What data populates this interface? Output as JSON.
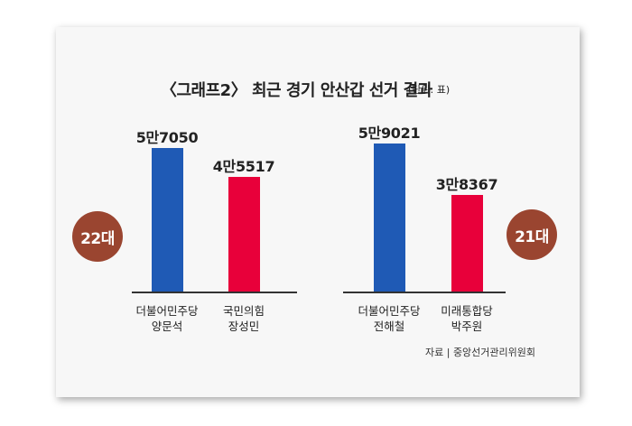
{
  "title": "〈그래프2〉 최근 경기 안산갑 선거 결과",
  "unit": "(단위: 표)",
  "source": "자료 | 중앙선거관리위원회",
  "chart_data": [
    {
      "type": "bar",
      "label": "22대",
      "unit": "표",
      "categories": [
        "더불어민주당 양문석",
        "국민의힘 장성민"
      ],
      "bars": [
        {
          "party": "더불어민주당",
          "candidate": "양문석",
          "value": 57050,
          "value_label": "5만7050",
          "color": "#1f5ab5"
        },
        {
          "party": "국민의힘",
          "candidate": "장성민",
          "value": 45517,
          "value_label": "4만5517",
          "color": "#e8003a"
        }
      ]
    },
    {
      "type": "bar",
      "label": "21대",
      "unit": "표",
      "categories": [
        "더불어민주당 전해철",
        "미래통합당 박주원"
      ],
      "bars": [
        {
          "party": "더불어민주당",
          "candidate": "전해철",
          "value": 59021,
          "value_label": "5만9021",
          "color": "#1f5ab5"
        },
        {
          "party": "미래통합당",
          "candidate": "박주원",
          "value": 38367,
          "value_label": "3만8367",
          "color": "#e8003a"
        }
      ]
    }
  ],
  "badge_color": "#9a4530"
}
